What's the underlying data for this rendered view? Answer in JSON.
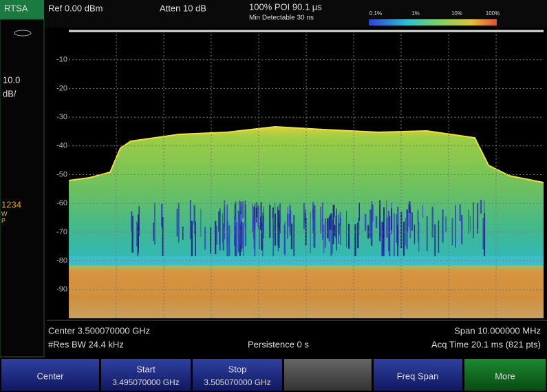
{
  "mode": "RTSA",
  "header": {
    "ref": "Ref 0.00 dBm",
    "atten": "Atten 10 dB",
    "poi": "100% POI 90.1 µs",
    "min_detectable": "Min Detectable 30 ns",
    "scale_labels": [
      "0.1%",
      "1%",
      "10%",
      "100%"
    ]
  },
  "sidebar": {
    "scale": "10.0",
    "unit": "dB/",
    "traces": "1234",
    "trace_w": "W",
    "trace_p": "P"
  },
  "plot": {
    "y_labels": [
      "-10",
      "-20",
      "-30",
      "-40",
      "-50",
      "-60",
      "-70",
      "-80",
      "-90"
    ]
  },
  "footer": {
    "center": "Center 3.500070000 GHz",
    "span": "Span 10.000000 MHz",
    "res_bw": "#Res BW 24.4 kHz",
    "persistence": "Persistence 0 s",
    "acq_time": "Acq Time 20.1 ms (821 pts)"
  },
  "softkeys": [
    {
      "label": "Center"
    },
    {
      "label": "Start",
      "value": "3.495070000 GHz"
    },
    {
      "label": "Stop",
      "value": "3.505070000 GHz"
    },
    {
      "label": "Freq Span"
    },
    {
      "label": "More"
    }
  ]
}
